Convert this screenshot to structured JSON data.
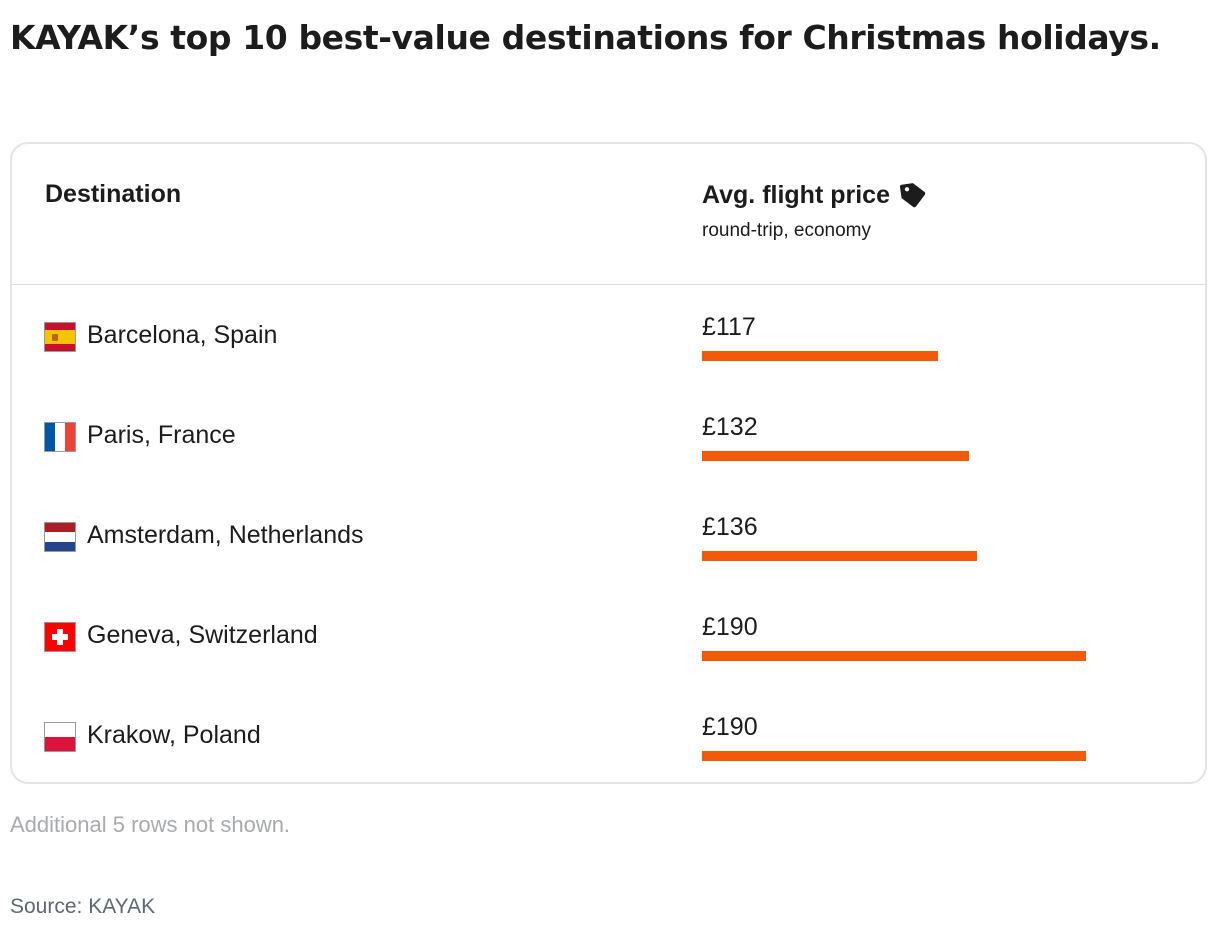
{
  "title": "KAYAK’s top 10 best-value destinations for Christmas holidays.",
  "table": {
    "headers": {
      "destination": "Destination",
      "price": "Avg. flight price",
      "price_icon": "price-tag-icon",
      "price_sub": "round-trip, economy"
    },
    "rows": [
      {
        "destination": "Barcelona, Spain",
        "flag": "spain-flag-icon",
        "price_label": "£117",
        "price": 117
      },
      {
        "destination": "Paris, France",
        "flag": "france-flag-icon",
        "price_label": "£132",
        "price": 132
      },
      {
        "destination": "Amsterdam, Netherlands",
        "flag": "netherlands-flag-icon",
        "price_label": "£136",
        "price": 136
      },
      {
        "destination": "Geneva, Switzerland",
        "flag": "switzerland-flag-icon",
        "price_label": "£190",
        "price": 190
      },
      {
        "destination": "Krakow, Poland",
        "flag": "poland-flag-icon",
        "price_label": "£190",
        "price": 190
      }
    ]
  },
  "footnote": "Additional 5 rows not shown.",
  "source": "Source: KAYAK",
  "colors": {
    "bar": "#f15a08",
    "text": "#1c1c1c",
    "muted": "#a8aaad",
    "border": "#e2e4e6"
  },
  "chart_data": {
    "type": "table",
    "columns": [
      "Destination",
      "Avg. flight price"
    ],
    "categories": [
      "Barcelona, Spain",
      "Paris, France",
      "Amsterdam, Netherlands",
      "Geneva, Switzerland",
      "Krakow, Poland"
    ],
    "values": [
      117,
      132,
      136,
      190,
      190
    ],
    "unit": "£"
  }
}
